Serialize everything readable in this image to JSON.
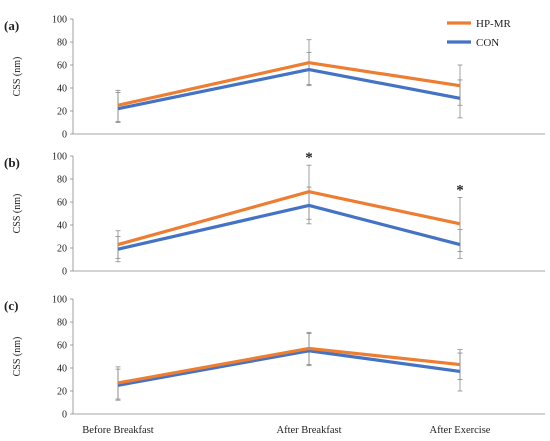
{
  "chart_data": {
    "type": "line",
    "ylabel": "CSS (nm)",
    "ylim": [
      0,
      100
    ],
    "yticks": [
      0,
      20,
      40,
      60,
      80,
      100
    ],
    "categories": [
      "Before Breakfast",
      "After Breakfast",
      "After Exercise"
    ],
    "legend": {
      "placement": "top-right",
      "entries": [
        {
          "name": "HP-MR",
          "color": "#ED7D31"
        },
        {
          "name": "CON",
          "color": "#4472C4"
        }
      ]
    },
    "panels": [
      {
        "label": "(a)",
        "series": [
          {
            "name": "HP-MR",
            "color": "#ED7D31",
            "values": [
              25,
              62,
              42
            ],
            "err_low": [
              11,
              43,
              25
            ],
            "err_high": [
              38,
              82,
              60
            ]
          },
          {
            "name": "CON",
            "color": "#4472C4",
            "values": [
              22,
              56,
              31
            ],
            "err_low": [
              10,
              42,
              14
            ],
            "err_high": [
              36,
              71,
              47
            ]
          }
        ],
        "annotations": []
      },
      {
        "label": "(b)",
        "series": [
          {
            "name": "HP-MR",
            "color": "#ED7D31",
            "values": [
              23,
              69,
              41
            ],
            "err_low": [
              11,
              45,
              17
            ],
            "err_high": [
              35,
              92,
              64
            ]
          },
          {
            "name": "CON",
            "color": "#4472C4",
            "values": [
              19,
              57,
              23
            ],
            "err_low": [
              8,
              41,
              11
            ],
            "err_high": [
              30,
              73,
              36
            ]
          }
        ],
        "annotations": [
          {
            "category": "After Breakfast",
            "text": "*"
          },
          {
            "category": "After Exercise",
            "text": "*"
          }
        ]
      },
      {
        "label": "(c)",
        "series": [
          {
            "name": "HP-MR",
            "color": "#ED7D31",
            "values": [
              27,
              57,
              43
            ],
            "err_low": [
              13,
              43,
              30
            ],
            "err_high": [
              41,
              71,
              56
            ]
          },
          {
            "name": "CON",
            "color": "#4472C4",
            "values": [
              25,
              55,
              37
            ],
            "err_low": [
              12,
              42,
              20
            ],
            "err_high": [
              39,
              70,
              53
            ]
          }
        ],
        "annotations": []
      }
    ]
  }
}
